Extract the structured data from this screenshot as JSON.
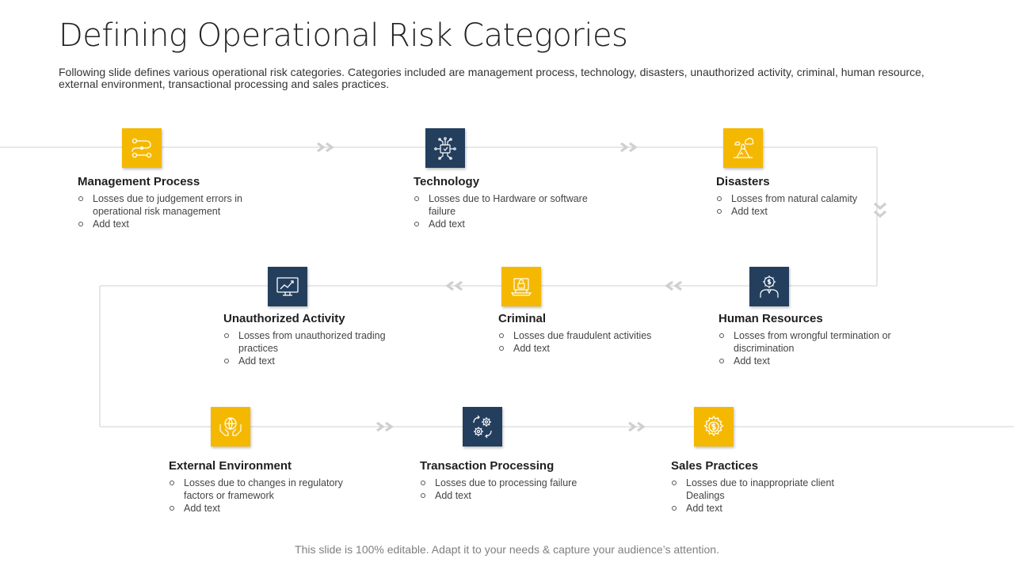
{
  "title": "Defining Operational Risk Categories",
  "subtitle": "Following slide defines various operational risk categories. Categories included are management process, technology, disasters, unauthorized activity, criminal, human resource, external environment, transactional processing and sales practices.",
  "footer": "This slide is 100% editable. Adapt it to your needs & capture your audience’s attention.",
  "colors": {
    "accent_yellow": "#f5b800",
    "accent_navy": "#243f5e",
    "line": "#d9d9d9",
    "chevron": "#d0d0d0"
  },
  "categories": [
    {
      "title": "Management Process",
      "icon": "flowchart-icon",
      "bullets": [
        "Losses due to judgement errors in operational risk management",
        "Add text"
      ]
    },
    {
      "title": "Technology",
      "icon": "circuit-chip-icon",
      "bullets": [
        "Losses due to Hardware or software failure",
        "Add text"
      ]
    },
    {
      "title": "Disasters",
      "icon": "volcano-icon",
      "bullets": [
        "Losses from natural calamity",
        "Add text"
      ]
    },
    {
      "title": "Unauthorized Activity",
      "icon": "monitor-chart-icon",
      "bullets": [
        "Losses from unauthorized trading practices",
        "Add text"
      ]
    },
    {
      "title": "Criminal",
      "icon": "laptop-lock-icon",
      "bullets": [
        "Losses due fraudulent activities",
        "Add text"
      ]
    },
    {
      "title": "Human Resources",
      "icon": "person-dollar-gear-icon",
      "bullets": [
        "Losses from wrongful termination or discrimination",
        "Add text"
      ]
    },
    {
      "title": "External Environment",
      "icon": "hands-globe-icon",
      "bullets": [
        "Losses due to changes in regulatory factors or framework",
        "Add text"
      ]
    },
    {
      "title": "Transaction Processing",
      "icon": "gears-cycle-icon",
      "bullets": [
        "Losses due to processing failure",
        "Add text"
      ]
    },
    {
      "title": "Sales Practices",
      "icon": "dollar-gear-icon",
      "bullets": [
        "Losses due to inappropriate client Dealings",
        "Add text"
      ]
    }
  ]
}
